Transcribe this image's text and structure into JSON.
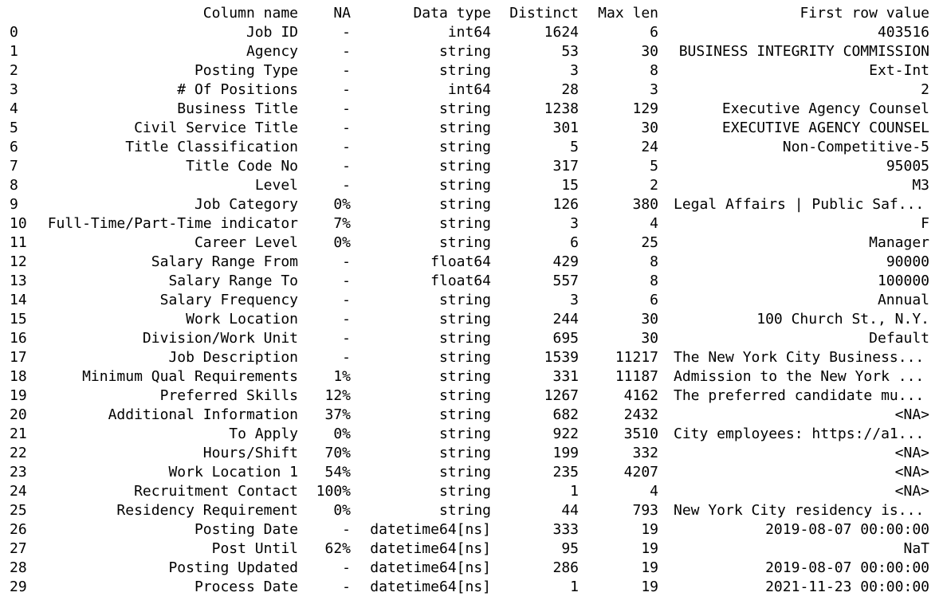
{
  "headers": {
    "column_name": "Column name",
    "na": "NA",
    "data_type": "Data type",
    "distinct": "Distinct",
    "max_len": "Max len",
    "first_row_value": "First row value"
  },
  "rows": [
    {
      "idx": "0",
      "name": "Job ID",
      "na": "-",
      "type": "int64",
      "distinct": "1624",
      "max_len": "6",
      "first": "403516",
      "first_align": "right"
    },
    {
      "idx": "1",
      "name": "Agency",
      "na": "-",
      "type": "string",
      "distinct": "53",
      "max_len": "30",
      "first": "BUSINESS INTEGRITY COMMISSION",
      "first_align": "right"
    },
    {
      "idx": "2",
      "name": "Posting Type",
      "na": "-",
      "type": "string",
      "distinct": "3",
      "max_len": "8",
      "first": "Ext-Int",
      "first_align": "right"
    },
    {
      "idx": "3",
      "name": "# Of Positions",
      "na": "-",
      "type": "int64",
      "distinct": "28",
      "max_len": "3",
      "first": "2",
      "first_align": "right"
    },
    {
      "idx": "4",
      "name": "Business Title",
      "na": "-",
      "type": "string",
      "distinct": "1238",
      "max_len": "129",
      "first": "Executive Agency Counsel",
      "first_align": "right"
    },
    {
      "idx": "5",
      "name": "Civil Service Title",
      "na": "-",
      "type": "string",
      "distinct": "301",
      "max_len": "30",
      "first": "EXECUTIVE AGENCY COUNSEL",
      "first_align": "right"
    },
    {
      "idx": "6",
      "name": "Title Classification",
      "na": "-",
      "type": "string",
      "distinct": "5",
      "max_len": "24",
      "first": "Non-Competitive-5",
      "first_align": "right"
    },
    {
      "idx": "7",
      "name": "Title Code No",
      "na": "-",
      "type": "string",
      "distinct": "317",
      "max_len": "5",
      "first": "95005",
      "first_align": "right"
    },
    {
      "idx": "8",
      "name": "Level",
      "na": "-",
      "type": "string",
      "distinct": "15",
      "max_len": "2",
      "first": "M3",
      "first_align": "right"
    },
    {
      "idx": "9",
      "name": "Job Category",
      "na": "0%",
      "type": "string",
      "distinct": "126",
      "max_len": "380",
      "first": "Legal Affairs | Public Saf...",
      "first_align": "left"
    },
    {
      "idx": "10",
      "name": "Full-Time/Part-Time indicator",
      "na": "7%",
      "type": "string",
      "distinct": "3",
      "max_len": "4",
      "first": "F",
      "first_align": "right"
    },
    {
      "idx": "11",
      "name": "Career Level",
      "na": "0%",
      "type": "string",
      "distinct": "6",
      "max_len": "25",
      "first": "Manager",
      "first_align": "right"
    },
    {
      "idx": "12",
      "name": "Salary Range From",
      "na": "-",
      "type": "float64",
      "distinct": "429",
      "max_len": "8",
      "first": "90000",
      "first_align": "right"
    },
    {
      "idx": "13",
      "name": "Salary Range To",
      "na": "-",
      "type": "float64",
      "distinct": "557",
      "max_len": "8",
      "first": "100000",
      "first_align": "right"
    },
    {
      "idx": "14",
      "name": "Salary Frequency",
      "na": "-",
      "type": "string",
      "distinct": "3",
      "max_len": "6",
      "first": "Annual",
      "first_align": "right"
    },
    {
      "idx": "15",
      "name": "Work Location",
      "na": "-",
      "type": "string",
      "distinct": "244",
      "max_len": "30",
      "first": "100 Church St., N.Y.",
      "first_align": "right"
    },
    {
      "idx": "16",
      "name": "Division/Work Unit",
      "na": "-",
      "type": "string",
      "distinct": "695",
      "max_len": "30",
      "first": "Default",
      "first_align": "right"
    },
    {
      "idx": "17",
      "name": "Job Description",
      "na": "-",
      "type": "string",
      "distinct": "1539",
      "max_len": "11217",
      "first": "The New York City Business...",
      "first_align": "left"
    },
    {
      "idx": "18",
      "name": "Minimum Qual Requirements",
      "na": "1%",
      "type": "string",
      "distinct": "331",
      "max_len": "11187",
      "first": "Admission to the New York ...",
      "first_align": "left"
    },
    {
      "idx": "19",
      "name": "Preferred Skills",
      "na": "12%",
      "type": "string",
      "distinct": "1267",
      "max_len": "4162",
      "first": "The preferred candidate mu...",
      "first_align": "left"
    },
    {
      "idx": "20",
      "name": "Additional Information",
      "na": "37%",
      "type": "string",
      "distinct": "682",
      "max_len": "2432",
      "first": "<NA>",
      "first_align": "right"
    },
    {
      "idx": "21",
      "name": "To Apply",
      "na": "0%",
      "type": "string",
      "distinct": "922",
      "max_len": "3510",
      "first": "City employees: https://a1...",
      "first_align": "left"
    },
    {
      "idx": "22",
      "name": "Hours/Shift",
      "na": "70%",
      "type": "string",
      "distinct": "199",
      "max_len": "332",
      "first": "<NA>",
      "first_align": "right"
    },
    {
      "idx": "23",
      "name": "Work Location 1",
      "na": "54%",
      "type": "string",
      "distinct": "235",
      "max_len": "4207",
      "first": "<NA>",
      "first_align": "right"
    },
    {
      "idx": "24",
      "name": "Recruitment Contact",
      "na": "100%",
      "type": "string",
      "distinct": "1",
      "max_len": "4",
      "first": "<NA>",
      "first_align": "right"
    },
    {
      "idx": "25",
      "name": "Residency Requirement",
      "na": "0%",
      "type": "string",
      "distinct": "44",
      "max_len": "793",
      "first": "New York City residency is...",
      "first_align": "left"
    },
    {
      "idx": "26",
      "name": "Posting Date",
      "na": "-",
      "type": "datetime64[ns]",
      "distinct": "333",
      "max_len": "19",
      "first": "2019-08-07 00:00:00",
      "first_align": "right"
    },
    {
      "idx": "27",
      "name": "Post Until",
      "na": "62%",
      "type": "datetime64[ns]",
      "distinct": "95",
      "max_len": "19",
      "first": "NaT",
      "first_align": "right"
    },
    {
      "idx": "28",
      "name": "Posting Updated",
      "na": "-",
      "type": "datetime64[ns]",
      "distinct": "286",
      "max_len": "19",
      "first": "2019-08-07 00:00:00",
      "first_align": "right"
    },
    {
      "idx": "29",
      "name": "Process Date",
      "na": "-",
      "type": "datetime64[ns]",
      "distinct": "1",
      "max_len": "19",
      "first": "2021-11-23 00:00:00",
      "first_align": "right"
    }
  ]
}
